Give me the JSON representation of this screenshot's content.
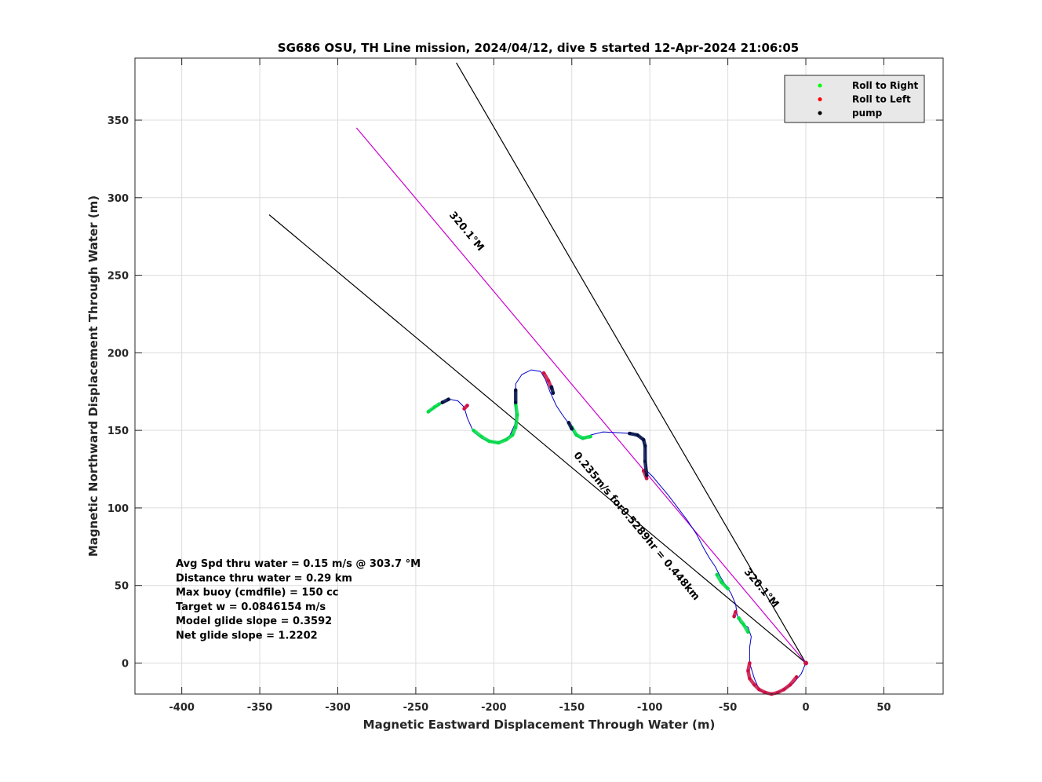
{
  "chart_data": {
    "type": "line",
    "title": "SG686 OSU, TH Line mission, 2024/04/12, dive 5 started 12-Apr-2024 21:06:05",
    "xlabel": "Magnetic Eastward Displacement Through Water (m)",
    "ylabel": "Magnetic Northward Displacement Through Water (m)",
    "xlim": [
      -430,
      88
    ],
    "ylim": [
      -20,
      390
    ],
    "xticks": [
      -400,
      -350,
      -300,
      -250,
      -200,
      -150,
      -100,
      -50,
      0,
      50
    ],
    "yticks": [
      0,
      50,
      100,
      150,
      200,
      250,
      300,
      350
    ],
    "grid": true,
    "legend": {
      "placement": "top-right",
      "entries": [
        {
          "label": "Roll to Right",
          "color": "#00ff00"
        },
        {
          "label": "Roll to Left",
          "color": "#ff0000"
        },
        {
          "label": "pump",
          "color": "#000000"
        }
      ]
    },
    "series": [
      {
        "kind": "track",
        "color": "#0000cc",
        "points": [
          [
            0,
            0
          ],
          [
            -3,
            -7
          ],
          [
            -8,
            -13
          ],
          [
            -14,
            -17
          ],
          [
            -20,
            -20
          ],
          [
            -25,
            -20
          ],
          [
            -30,
            -17
          ],
          [
            -33,
            -10
          ],
          [
            -36,
            0
          ],
          [
            -36,
            10
          ],
          [
            -35,
            17
          ],
          [
            -37,
            23
          ],
          [
            -42,
            26
          ],
          [
            -44,
            31
          ],
          [
            -45,
            38
          ],
          [
            -48,
            45
          ],
          [
            -52,
            51
          ],
          [
            -55,
            56
          ],
          [
            -58,
            62
          ],
          [
            -62,
            68
          ],
          [
            -66,
            75
          ],
          [
            -70,
            83
          ],
          [
            -76,
            92
          ],
          [
            -82,
            100
          ],
          [
            -88,
            108
          ],
          [
            -93,
            114
          ],
          [
            -98,
            120
          ],
          [
            -102,
            124
          ],
          [
            -103,
            140
          ],
          [
            -106,
            146
          ],
          [
            -112,
            148
          ],
          [
            -120,
            148.5
          ],
          [
            -130,
            149
          ],
          [
            -138,
            147
          ],
          [
            -143,
            144
          ],
          [
            -148,
            147
          ],
          [
            -151,
            153
          ],
          [
            -156,
            160
          ],
          [
            -160,
            166
          ],
          [
            -164,
            175
          ],
          [
            -167,
            183
          ],
          [
            -170,
            188
          ],
          [
            -176,
            189
          ],
          [
            -182,
            186
          ],
          [
            -186,
            180
          ],
          [
            -186,
            170
          ],
          [
            -186,
            165
          ],
          [
            -186,
            155
          ],
          [
            -190,
            146
          ],
          [
            -197,
            142
          ],
          [
            -203,
            143
          ],
          [
            -208,
            145
          ],
          [
            -213,
            149
          ],
          [
            -217,
            158
          ],
          [
            -219,
            165
          ],
          [
            -223,
            169
          ],
          [
            -228,
            170
          ],
          [
            -234,
            167
          ],
          [
            -239,
            164
          ],
          [
            -242,
            162
          ]
        ]
      },
      {
        "kind": "roll-right",
        "color": "#00dd44",
        "segments": [
          [
            [
              -242,
              162
            ],
            [
              -238,
              165
            ],
            [
              -235,
              167
            ]
          ],
          [
            [
              -213,
              150
            ],
            [
              -208,
              146
            ],
            [
              -203,
              143
            ],
            [
              -197,
              142
            ],
            [
              -192,
              144
            ],
            [
              -188,
              147
            ],
            [
              -186,
              152
            ],
            [
              -185,
              160
            ],
            [
              -186,
              167
            ]
          ],
          [
            [
              -150,
              152
            ],
            [
              -147,
              147
            ],
            [
              -143,
              145
            ],
            [
              -138,
              146
            ]
          ],
          [
            [
              -57,
              57
            ],
            [
              -54,
              52
            ],
            [
              -50,
              48
            ]
          ],
          [
            [
              -43,
              29
            ],
            [
              -40,
              25
            ],
            [
              -37,
              20
            ]
          ]
        ]
      },
      {
        "kind": "roll-left",
        "color": "#cc1144",
        "segments": [
          [
            [
              -168,
              187
            ],
            [
              -165,
              182
            ],
            [
              -163,
              177
            ]
          ],
          [
            [
              -104,
              124
            ],
            [
              -102,
              119
            ]
          ],
          [
            [
              -219,
              164
            ],
            [
              -217,
              166
            ]
          ],
          [
            [
              -45,
              33
            ],
            [
              -46,
              30
            ]
          ],
          [
            [
              -36,
              0
            ],
            [
              -37,
              -5
            ],
            [
              -36,
              -10
            ],
            [
              -33,
              -14
            ],
            [
              -30,
              -17
            ],
            [
              -26,
              -19
            ],
            [
              -22,
              -20
            ],
            [
              -18,
              -19
            ],
            [
              -14,
              -17
            ],
            [
              -10,
              -14
            ],
            [
              -6,
              -9
            ]
          ]
        ]
      },
      {
        "kind": "pump",
        "color": "#001144",
        "segments": [
          [
            [
              -233,
              168
            ],
            [
              -229,
              170
            ]
          ],
          [
            [
              -186,
              176
            ],
            [
              -186,
              168
            ]
          ],
          [
            [
              -163,
              178
            ],
            [
              -162,
              174
            ]
          ],
          [
            [
              -152,
              155
            ],
            [
              -150,
              151
            ]
          ],
          [
            [
              -113,
              148
            ],
            [
              -108,
              147
            ],
            [
              -104,
              144
            ],
            [
              -103,
              140
            ],
            [
              -103,
              130
            ],
            [
              -102,
              121
            ]
          ]
        ]
      },
      {
        "kind": "reference-line",
        "color": "#000000",
        "points": [
          [
            0,
            0
          ],
          [
            -344,
            289
          ]
        ]
      },
      {
        "kind": "reference-line",
        "color": "#000000",
        "points": [
          [
            0,
            0
          ],
          [
            -224,
            387
          ]
        ]
      },
      {
        "kind": "reference-line",
        "color": "#cc00cc",
        "points": [
          [
            0,
            0
          ],
          [
            -288,
            345
          ]
        ]
      }
    ],
    "annotations": [
      {
        "text": "320.1°M",
        "x": -30,
        "y": 47,
        "angle": 50
      },
      {
        "text": "320.1°M",
        "x": -219,
        "y": 277,
        "angle": 50
      },
      {
        "text": "0.235m/s for0.5289hr = 0.448km",
        "x": -110,
        "y": 87,
        "angle": 50
      }
    ],
    "stats": [
      "Avg Spd thru water  =  0.15 m/s @ 303.7 °M",
      "Distance thru water =  0.29 km",
      "Max buoy (cmdfile)  = 150 cc",
      "Target w                   = 0.0846154 m/s",
      "Model glide slope    = 0.3592",
      "Net glide slope         = 1.2202"
    ]
  }
}
